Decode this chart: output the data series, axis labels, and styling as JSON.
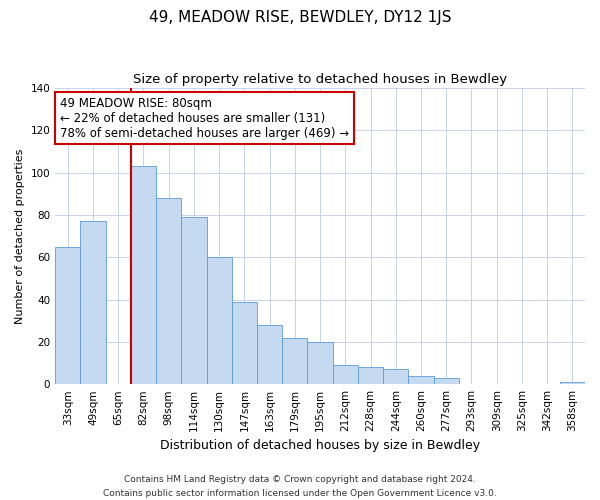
{
  "title": "49, MEADOW RISE, BEWDLEY, DY12 1JS",
  "subtitle": "Size of property relative to detached houses in Bewdley",
  "xlabel": "Distribution of detached houses by size in Bewdley",
  "ylabel": "Number of detached properties",
  "footer_line1": "Contains HM Land Registry data © Crown copyright and database right 2024.",
  "footer_line2": "Contains public sector information licensed under the Open Government Licence v3.0.",
  "bin_labels": [
    "33sqm",
    "49sqm",
    "65sqm",
    "82sqm",
    "98sqm",
    "114sqm",
    "130sqm",
    "147sqm",
    "163sqm",
    "179sqm",
    "195sqm",
    "212sqm",
    "228sqm",
    "244sqm",
    "260sqm",
    "277sqm",
    "293sqm",
    "309sqm",
    "325sqm",
    "342sqm",
    "358sqm"
  ],
  "bar_values": [
    65,
    77,
    0,
    103,
    88,
    79,
    60,
    39,
    28,
    22,
    20,
    9,
    8,
    7,
    4,
    3,
    0,
    0,
    0,
    0,
    1
  ],
  "bar_color": "#c5d9f0",
  "bar_edge_color": "#5b9bd5",
  "reference_line_color": "#cc0000",
  "annotation_text": "49 MEADOW RISE: 80sqm\n← 22% of detached houses are smaller (131)\n78% of semi-detached houses are larger (469) →",
  "annotation_box_edge_color": "#cc0000",
  "annotation_box_face_color": "#ffffff",
  "ylim": [
    0,
    140
  ],
  "yticks": [
    0,
    20,
    40,
    60,
    80,
    100,
    120,
    140
  ],
  "grid_color": "#c5d5e8",
  "background_color": "#ffffff",
  "title_fontsize": 11,
  "subtitle_fontsize": 9.5,
  "xlabel_fontsize": 9,
  "ylabel_fontsize": 8,
  "tick_fontsize": 7.5,
  "annotation_fontsize": 8.5,
  "footer_fontsize": 6.5
}
